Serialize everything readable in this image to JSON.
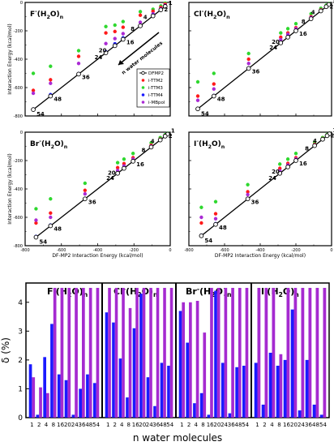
{
  "scatter_panels": {
    "ylabel": "Interaction Energy (kcal/mol)",
    "xlabel": "DF-MP2 Interaction Energy (kcal/mol)",
    "arrow_label": "n water molecules",
    "xticks": [
      "-800",
      "-600",
      "-400",
      "-200",
      "0"
    ],
    "yticks": [
      "-800",
      "-600",
      "-400",
      "-200",
      "0"
    ],
    "legend": [
      "DFMP2",
      "i-TTM2",
      "i-TTM3",
      "i-TTM4",
      "i-MBpol"
    ],
    "n_labels": [
      "1",
      "2",
      "4",
      "8",
      "16",
      "20",
      "24",
      "36",
      "48",
      "54"
    ],
    "panel_titles": [
      {
        "ion": "F",
        "sup": "-",
        "mol": "(H",
        "sub2": "2",
        "tail": "O)",
        "subn": "n"
      },
      {
        "ion": "Cl",
        "sup": "-",
        "mol": "(H",
        "sub2": "2",
        "tail": "O)",
        "subn": "n"
      },
      {
        "ion": "Br",
        "sup": "-",
        "mol": "(H",
        "sub2": "2",
        "tail": "O)",
        "subn": "n"
      },
      {
        "ion": "I",
        "sup": "-",
        "mol": "(H",
        "sub2": "2",
        "tail": "O)",
        "subn": "n"
      }
    ]
  },
  "bar_panel": {
    "ylabel": "δ (%)",
    "xlabel": "n water molecules",
    "yticks": [
      "0",
      "1",
      "2",
      "3",
      "4"
    ],
    "xticks": [
      "1",
      "2",
      "4",
      "8",
      "16",
      "20",
      "24",
      "36",
      "48",
      "54"
    ],
    "section_titles": [
      {
        "ion": "F",
        "sup": "-",
        "mol": "(H",
        "sub2": "2",
        "tail": "O)",
        "subn": "n"
      },
      {
        "ion": "Cl",
        "sup": "-",
        "mol": "(H",
        "sub2": "2",
        "tail": "O)",
        "subn": "n"
      },
      {
        "ion": "Br",
        "sup": "-",
        "mol": "(H",
        "sub2": "2",
        "tail": "O)",
        "subn": "n"
      },
      {
        "ion": "I",
        "sup": "-",
        "mol": "(H",
        "sub2": "2",
        "tail": "O)",
        "subn": "n"
      }
    ]
  },
  "chart_data": [
    {
      "type": "scatter",
      "panel": "F-(H2O)n",
      "xlim": [
        -800,
        0
      ],
      "ylim": [
        -800,
        0
      ],
      "grid": false,
      "legend_position": "right",
      "colors": {
        "DFMP2": "#000000",
        "i-TTM2": "#ff1a1a",
        "i-TTM3": "#2fd82f",
        "i-TTM4": "#1a1aff",
        "i-MBpol": "#aa2ad4"
      },
      "n": [
        1,
        2,
        4,
        8,
        16,
        20,
        24,
        36,
        48,
        54
      ],
      "x": [
        -28,
        -52,
        -95,
        -165,
        -260,
        -305,
        -355,
        -505,
        -660,
        -755
      ],
      "series": [
        {
          "name": "DFMP2",
          "values": [
            -28,
            -52,
            -95,
            -165,
            -260,
            -305,
            -355,
            -505,
            -660,
            -755
          ]
        },
        {
          "name": "i-TTM2",
          "values": [
            -12,
            -35,
            -62,
            -90,
            -175,
            -205,
            -215,
            -380,
            -545,
            -620
          ]
        },
        {
          "name": "i-TTM3",
          "values": [
            -5,
            -25,
            -48,
            -65,
            -135,
            -160,
            -170,
            -340,
            -450,
            -500
          ]
        },
        {
          "name": "i-TTM4",
          "values": [
            -24,
            -48,
            -90,
            -165,
            -250,
            -292,
            -348,
            -502,
            -650,
            -752
          ]
        },
        {
          "name": "i-MBpol",
          "values": [
            -20,
            -44,
            -80,
            -140,
            -220,
            -255,
            -290,
            -430,
            -570,
            -640
          ]
        }
      ]
    },
    {
      "type": "scatter",
      "panel": "Cl-(H2O)n",
      "xlim": [
        -800,
        0
      ],
      "ylim": [
        -800,
        0
      ],
      "grid": false,
      "n": [
        1,
        2,
        4,
        8,
        16,
        20,
        24,
        36,
        48,
        54
      ],
      "x": [
        -15,
        -30,
        -60,
        -115,
        -200,
        -245,
        -285,
        -465,
        -660,
        -750
      ],
      "series": [
        {
          "name": "DFMP2",
          "values": [
            -15,
            -30,
            -60,
            -115,
            -200,
            -245,
            -285,
            -465,
            -660,
            -750
          ]
        },
        {
          "name": "i-TTM2",
          "values": [
            -12,
            -26,
            -52,
            -100,
            -178,
            -215,
            -245,
            -400,
            -575,
            -660
          ]
        },
        {
          "name": "i-TTM3",
          "values": [
            -8,
            -20,
            -42,
            -80,
            -150,
            -185,
            -215,
            -360,
            -500,
            -560
          ]
        },
        {
          "name": "i-TTM4",
          "values": [
            -14,
            -30,
            -58,
            -112,
            -198,
            -240,
            -282,
            -462,
            -656,
            -748
          ]
        },
        {
          "name": "i-MBpol",
          "values": [
            -13,
            -28,
            -55,
            -105,
            -185,
            -225,
            -262,
            -430,
            -610,
            -690
          ]
        }
      ]
    },
    {
      "type": "scatter",
      "panel": "Br-(H2O)n",
      "xlim": [
        -800,
        0
      ],
      "ylim": [
        -800,
        0
      ],
      "grid": false,
      "n": [
        1,
        2,
        4,
        8,
        16,
        20,
        24,
        36,
        48,
        54
      ],
      "x": [
        -14,
        -28,
        -55,
        -105,
        -205,
        -255,
        -290,
        -470,
        -660,
        -740
      ],
      "series": [
        {
          "name": "DFMP2",
          "values": [
            -14,
            -28,
            -55,
            -105,
            -205,
            -255,
            -290,
            -470,
            -660,
            -740
          ]
        },
        {
          "name": "i-TTM2",
          "values": [
            -12,
            -24,
            -48,
            -92,
            -180,
            -222,
            -250,
            -410,
            -570,
            -640
          ]
        },
        {
          "name": "i-TTM3",
          "values": [
            -8,
            -18,
            -38,
            -75,
            -150,
            -190,
            -215,
            -360,
            -470,
            -540
          ]
        },
        {
          "name": "i-TTM4",
          "values": [
            -14,
            -28,
            -54,
            -104,
            -203,
            -252,
            -288,
            -468,
            -655,
            -735
          ]
        },
        {
          "name": "i-MBpol",
          "values": [
            -13,
            -26,
            -51,
            -98,
            -190,
            -238,
            -270,
            -435,
            -600,
            -620
          ]
        }
      ]
    },
    {
      "type": "scatter",
      "panel": "I-(H2O)n",
      "xlim": [
        -800,
        0
      ],
      "ylim": [
        -800,
        0
      ],
      "grid": false,
      "n": [
        1,
        2,
        4,
        8,
        16,
        20,
        24,
        36,
        48,
        54
      ],
      "x": [
        -12,
        -25,
        -50,
        -95,
        -200,
        -245,
        -290,
        -470,
        -650,
        -730
      ],
      "series": [
        {
          "name": "DFMP2",
          "values": [
            -12,
            -25,
            -50,
            -95,
            -200,
            -245,
            -290,
            -470,
            -650,
            -730
          ]
        },
        {
          "name": "i-TTM2",
          "values": [
            -11,
            -22,
            -45,
            -86,
            -180,
            -220,
            -255,
            -420,
            -575,
            -640
          ]
        },
        {
          "name": "i-TTM3",
          "values": [
            -8,
            -17,
            -38,
            -72,
            -150,
            -190,
            -225,
            -370,
            -490,
            -530
          ]
        },
        {
          "name": "i-TTM4",
          "values": [
            -12,
            -25,
            -49,
            -94,
            -198,
            -242,
            -288,
            -468,
            -645,
            -726
          ]
        },
        {
          "name": "i-MBpol",
          "values": [
            -11,
            -23,
            -47,
            -90,
            -188,
            -232,
            -272,
            -440,
            -610,
            -600
          ]
        }
      ]
    },
    {
      "type": "bar",
      "title": "",
      "ylabel": "δ (%)",
      "xlabel": "n water molecules",
      "ylim": [
        0,
        4.5
      ],
      "categories": [
        "1",
        "2",
        "4",
        "8",
        "16",
        "20",
        "24",
        "36",
        "48",
        "54"
      ],
      "groups": [
        "F-(H2O)n",
        "Cl-(H2O)n",
        "Br-(H2O)n",
        "I-(H2O)n"
      ],
      "colors": {
        "i-TTM4": "#1a1aff",
        "i-MBpol": "#a52ad0"
      },
      "series": [
        {
          "group": "F-(H2O)n",
          "name": "i-TTM4",
          "values": [
            1.85,
            0.1,
            2.1,
            3.25,
            1.5,
            1.3,
            0.1,
            1.0,
            1.5,
            1.2
          ]
        },
        {
          "group": "F-(H2O)n",
          "name": "i-MBpol",
          "values": [
            1.4,
            1.05,
            0.85,
            4.5,
            4.5,
            4.5,
            4.5,
            4.5,
            4.5,
            4.5
          ]
        },
        {
          "group": "Cl-(H2O)n",
          "name": "i-TTM4",
          "values": [
            3.65,
            3.3,
            2.05,
            0.7,
            3.1,
            4.3,
            1.4,
            0.4,
            1.9,
            1.8
          ]
        },
        {
          "group": "Cl-(H2O)n",
          "name": "i-MBpol",
          "values": [
            4.5,
            4.5,
            4.5,
            3.8,
            4.5,
            4.5,
            4.5,
            4.5,
            4.5,
            4.5
          ]
        },
        {
          "group": "Br-(H2O)n",
          "name": "i-TTM4",
          "values": [
            3.7,
            2.6,
            0.5,
            0.85,
            0.1,
            4.4,
            1.9,
            0.15,
            1.75,
            1.8
          ]
        },
        {
          "group": "Br-(H2O)n",
          "name": "i-MBpol",
          "values": [
            4.0,
            4.0,
            4.05,
            2.95,
            4.5,
            4.5,
            4.5,
            4.5,
            4.5,
            4.5
          ]
        },
        {
          "group": "I-(H2O)n",
          "name": "i-TTM4",
          "values": [
            1.9,
            0.45,
            2.25,
            1.8,
            2.0,
            3.75,
            0.25,
            2.0,
            0.45,
            0.1
          ]
        },
        {
          "group": "I-(H2O)n",
          "name": "i-MBpol",
          "values": [
            4.5,
            4.5,
            4.5,
            2.2,
            4.5,
            4.5,
            4.5,
            4.5,
            4.5,
            4.5
          ]
        }
      ]
    }
  ]
}
